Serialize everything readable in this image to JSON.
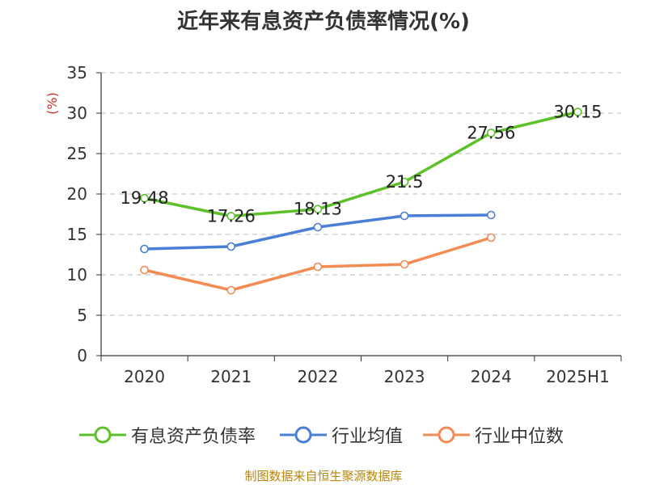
{
  "chart_data": {
    "type": "line",
    "title": "近年来有息资产负债率情况(%)",
    "ylabel": "(%)",
    "categories": [
      "2020",
      "2021",
      "2022",
      "2023",
      "2024",
      "2025H1"
    ],
    "yticks": [
      "0",
      "5",
      "10",
      "15",
      "20",
      "25",
      "30",
      "35"
    ],
    "ylim": [
      0,
      35
    ],
    "grid": true,
    "legend_position": "bottom",
    "series": [
      {
        "name": "有息资产负债率",
        "color": "#5cc128",
        "values": [
          19.48,
          17.26,
          18.13,
          21.5,
          27.56,
          30.15
        ],
        "labels": [
          "19.48",
          "17.26",
          "18.13",
          "21.5",
          "27.56",
          "30.15"
        ]
      },
      {
        "name": "行业均值",
        "color": "#4a7fd6",
        "values": [
          13.2,
          13.5,
          15.9,
          17.3,
          17.4,
          null
        ]
      },
      {
        "name": "行业中位数",
        "color": "#f28b54",
        "values": [
          10.6,
          8.1,
          11.0,
          11.3,
          14.6,
          null
        ]
      }
    ]
  },
  "source": "制图数据来自恒生聚源数据库"
}
